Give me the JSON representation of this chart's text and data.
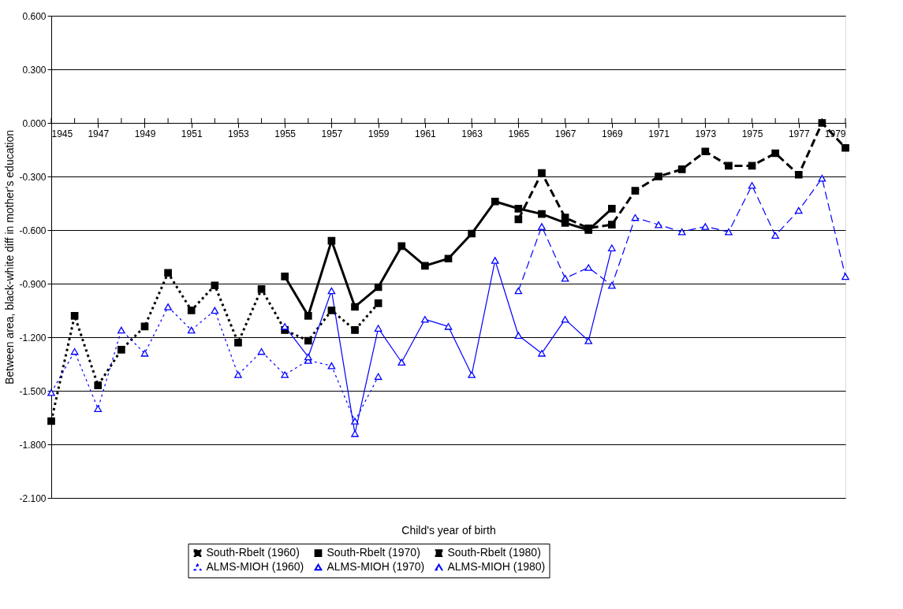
{
  "chart_data": {
    "type": "line",
    "xlabel": "Child's year of birth",
    "ylabel": "Between area, black-white diff in mother's education",
    "xlim": [
      1945,
      1979
    ],
    "xticks": [
      1945,
      {
        "value": 1946,
        "label": null
      },
      1947,
      {
        "value": 1948,
        "label": null
      },
      1949,
      {
        "value": 1950,
        "label": null
      },
      1951,
      {
        "value": 1952,
        "label": null
      },
      1953,
      {
        "value": 1954,
        "label": null
      },
      1955,
      {
        "value": 1956,
        "label": null
      },
      1957,
      {
        "value": 1958,
        "label": null
      },
      1959,
      {
        "value": 1960,
        "label": null
      },
      1961,
      {
        "value": 1962,
        "label": null
      },
      1963,
      {
        "value": 1964,
        "label": null
      },
      1965,
      {
        "value": 1966,
        "label": null
      },
      1967,
      {
        "value": 1968,
        "label": null
      },
      1969,
      {
        "value": 1970,
        "label": null
      },
      1971,
      {
        "value": 1972,
        "label": null
      },
      1973,
      {
        "value": 1974,
        "label": null
      },
      1975,
      {
        "value": 1976,
        "label": null
      },
      1977,
      {
        "value": 1978,
        "label": null
      },
      1979
    ],
    "ylim": [
      -2.1,
      0.6
    ],
    "yticks": [
      {
        "value": -2.1,
        "label": "-2.100"
      },
      {
        "value": -1.8,
        "label": "-1.800"
      },
      {
        "value": -1.5,
        "label": "-1.500"
      },
      {
        "value": -1.2,
        "label": "-1.200"
      },
      {
        "value": -0.9,
        "label": "-0.900"
      },
      {
        "value": -0.6,
        "label": "-0.600"
      },
      {
        "value": -0.3,
        "label": "-0.300"
      },
      {
        "value": 0,
        "label": "0.000"
      },
      {
        "value": 0.3,
        "label": "0.300"
      },
      {
        "value": 0.6,
        "label": "0.600"
      }
    ],
    "grid": "y",
    "legend": "bottom",
    "series": [
      {
        "name": "South-Rbelt (1960)",
        "color": "#000000",
        "marker": "square",
        "line_style": "dotted",
        "x": [
          1945,
          1946,
          1947,
          1948,
          1949,
          1950,
          1951,
          1952,
          1953,
          1954,
          1955,
          1956,
          1957,
          1958,
          1959
        ],
        "values": [
          -1.67,
          -1.08,
          -1.47,
          -1.27,
          -1.14,
          -0.84,
          -1.05,
          -0.91,
          -1.23,
          -0.93,
          -1.16,
          -1.22,
          -1.05,
          -1.16,
          -1.01
        ]
      },
      {
        "name": "South-Rbelt (1970)",
        "color": "#000000",
        "marker": "square",
        "line_style": "solid",
        "x": [
          1955,
          1956,
          1957,
          1958,
          1959,
          1960,
          1961,
          1962,
          1963,
          1964,
          1965,
          1966,
          1967,
          1968,
          1969
        ],
        "values": [
          -0.86,
          -1.08,
          -0.66,
          -1.03,
          -0.92,
          -0.69,
          -0.8,
          -0.76,
          -0.62,
          -0.44,
          -0.48,
          -0.51,
          -0.56,
          -0.6,
          -0.48
        ]
      },
      {
        "name": "South-Rbelt (1980)",
        "color": "#000000",
        "marker": "square",
        "line_style": "dashed",
        "x": [
          1965,
          1966,
          1967,
          1968,
          1969,
          1970,
          1971,
          1972,
          1973,
          1974,
          1975,
          1976,
          1977,
          1978,
          1979
        ],
        "values": [
          -0.54,
          -0.28,
          -0.53,
          -0.59,
          -0.57,
          -0.38,
          -0.3,
          -0.26,
          -0.16,
          -0.24,
          -0.24,
          -0.17,
          -0.29,
          0.0,
          -0.14
        ]
      },
      {
        "name": "ALMS-MIOH (1960)",
        "color": "#0000ff",
        "marker": "triangle",
        "line_style": "dotted",
        "x": [
          1945,
          1946,
          1947,
          1948,
          1949,
          1950,
          1951,
          1952,
          1953,
          1954,
          1955,
          1956,
          1957,
          1958,
          1959
        ],
        "values": [
          -1.51,
          -1.28,
          -1.6,
          -1.16,
          -1.29,
          -1.03,
          -1.16,
          -1.05,
          -1.41,
          -1.28,
          -1.41,
          -1.33,
          -1.36,
          -1.67,
          -1.42
        ]
      },
      {
        "name": "ALMS-MIOH (1970)",
        "color": "#0000ff",
        "marker": "triangle",
        "line_style": "solid",
        "x": [
          1955,
          1956,
          1957,
          1958,
          1959,
          1960,
          1961,
          1962,
          1963,
          1964,
          1965,
          1966,
          1967,
          1968,
          1969
        ],
        "values": [
          -1.14,
          -1.31,
          -0.94,
          -1.74,
          -1.15,
          -1.34,
          -1.1,
          -1.14,
          -1.41,
          -0.77,
          -1.19,
          -1.29,
          -1.1,
          -1.22,
          -0.7
        ]
      },
      {
        "name": "ALMS-MIOH (1980)",
        "color": "#0000ff",
        "marker": "triangle",
        "line_style": "dashed",
        "x": [
          1965,
          1966,
          1967,
          1968,
          1969,
          1970,
          1971,
          1972,
          1973,
          1974,
          1975,
          1976,
          1977,
          1978,
          1979
        ],
        "values": [
          -0.94,
          -0.58,
          -0.87,
          -0.81,
          -0.91,
          -0.53,
          -0.57,
          -0.61,
          -0.58,
          -0.61,
          -0.35,
          -0.63,
          -0.49,
          -0.31,
          -0.86
        ]
      }
    ]
  }
}
